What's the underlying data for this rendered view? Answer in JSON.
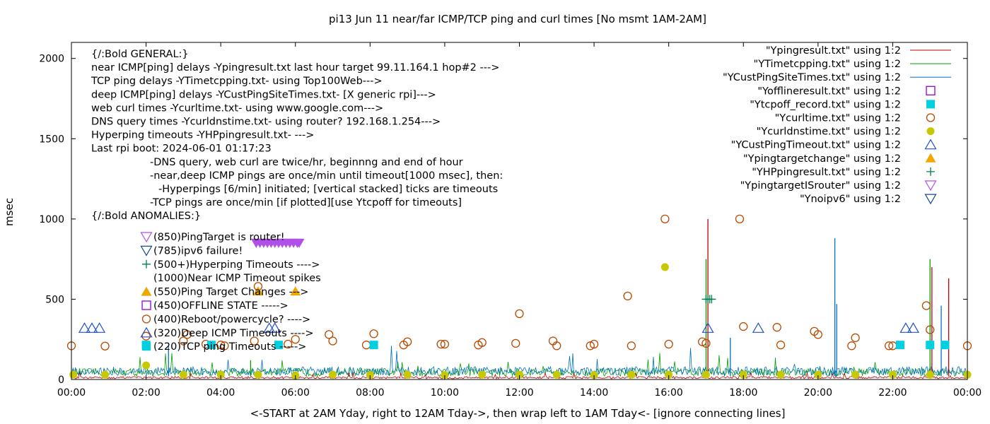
{
  "chart_data": {
    "type": "line",
    "title": "pi13 Jun 11  near/far ICMP/TCP ping and curl times [No msmt 1AM-2AM]",
    "xlabel": "<-START at 2AM Yday, right to 12AM Tday->, then wrap left to 1AM Tday<- [ignore connecting lines]",
    "ylabel": "msec",
    "xlim": [
      0,
      24
    ],
    "ylim": [
      0,
      2100
    ],
    "grid": false,
    "legend_position": "top-right",
    "x_ticks": [
      {
        "v": 0,
        "label": "00:00"
      },
      {
        "v": 2,
        "label": "02:00"
      },
      {
        "v": 4,
        "label": "04:00"
      },
      {
        "v": 6,
        "label": "06:00"
      },
      {
        "v": 8,
        "label": "08:00"
      },
      {
        "v": 10,
        "label": "10:00"
      },
      {
        "v": 12,
        "label": "12:00"
      },
      {
        "v": 14,
        "label": "14:00"
      },
      {
        "v": 16,
        "label": "16:00"
      },
      {
        "v": 18,
        "label": "18:00"
      },
      {
        "v": 20,
        "label": "20:00"
      },
      {
        "v": 22,
        "label": "22:00"
      },
      {
        "v": 24,
        "label": "00:00"
      }
    ],
    "y_ticks": [
      {
        "v": 0,
        "label": "0"
      },
      {
        "v": 500,
        "label": "500"
      },
      {
        "v": 1000,
        "label": "1000"
      },
      {
        "v": 1500,
        "label": "1500"
      },
      {
        "v": 2000,
        "label": "2000"
      }
    ],
    "legend": [
      {
        "label": "\"Ypingresult.txt\" using 1:2",
        "marker": "line",
        "color": "#c00000"
      },
      {
        "label": "\"YTimetcpping.txt\" using 1:2",
        "marker": "line",
        "color": "#009e00"
      },
      {
        "label": "\"YCustPingSiteTimes.txt\" using 1:2",
        "marker": "line",
        "color": "#0070c0"
      },
      {
        "label": "\"Yofflineresult.txt\" using 1:2",
        "marker": "square-open",
        "color": "#9400d3"
      },
      {
        "label": "\"Ytcpoff_record.txt\" using 1:2",
        "marker": "square-filled",
        "color": "#00d0e0"
      },
      {
        "label": "\"Ycurltime.txt\" using 1:2",
        "marker": "circle-open",
        "color": "#b84a00"
      },
      {
        "label": "\"Ycurldnstime.txt\" using 1:2",
        "marker": "circle-filled",
        "color": "#c8c800"
      },
      {
        "label": "\"YCustPingTimeout.txt\" using 1:2",
        "marker": "triangle-up-open",
        "color": "#2050d0"
      },
      {
        "label": "\"Ypingtargetchange\" using 1:2",
        "marker": "triangle-up-filled",
        "color": "#f0a800"
      },
      {
        "label": "\"YHPpingresult.txt\" using 1:2",
        "marker": "plus",
        "color": "#00804a"
      },
      {
        "label": "\"YpingtargetISrouter\" using 1:2",
        "marker": "triangle-down-open",
        "color": "#b050e8"
      },
      {
        "label": "\"Ynoipv6\" using 1:2",
        "marker": "triangle-down-open",
        "color": "#104a90"
      }
    ],
    "notes": [
      "{/:Bold GENERAL:}",
      "near ICMP[ping] delays -Ypingresult.txt last hour target 99.11.164.1 hop#2 --->",
      "TCP ping delays -YTimetcpping.txt- using Top100Web--->",
      "deep ICMP[ping] delays -YCustPingSiteTimes.txt- [X generic rpi]--->",
      "web curl times -Ycurltime.txt- using www.google.com--->",
      "DNS query times -Ycurldnstime.txt- using router? 192.168.1.254--->",
      "Hyperping timeouts -YHPpingresult.txt- --->",
      "Last rpi boot: 2024-06-01 01:17:23",
      "-DNS query, web curl are twice/hr, beginnng and end of hour",
      "-near,deep ICMP pings are once/min until timeout[1000 msec], then:",
      "-Hyperpings [6/min] initiated; [vertical stacked] ticks are timeouts",
      "-TCP pings are once/min [if plotted][use Ytcpoff for timeouts]",
      "{/:Bold ANOMALIES:}"
    ],
    "anomalies": [
      {
        "label": "(850)PingTarget is router!",
        "marker": "triangle-down-open",
        "color": "#b050e8"
      },
      {
        "label": "(785)ipv6 failure!",
        "marker": "triangle-down-open",
        "color": "#104a90"
      },
      {
        "label": "(500+)Hyperping Timeouts ---->",
        "marker": "plus",
        "color": "#00804a"
      },
      {
        "label": "(1000)Near ICMP Timeout spikes",
        "marker": "none",
        "color": "#000000"
      },
      {
        "label": "(550)Ping Target Changes --->",
        "marker": "triangle-up-filled",
        "color": "#f0a800"
      },
      {
        "label": "(450)OFFLINE STATE ----->",
        "marker": "square-open",
        "color": "#9400d3"
      },
      {
        "label": "(400)Reboot/powercycle? ---->",
        "marker": "circle-open",
        "color": "#b84a00"
      },
      {
        "label": "(320)Deep ICMP Timeouts ---->",
        "marker": "triangle-up-open",
        "color": "#2050d0"
      },
      {
        "label": "(220)TCP ping Timeouts ----->",
        "marker": "square-filled",
        "color": "#00d0e0"
      }
    ],
    "series": {
      "ycurltime": {
        "color": "#b84a00",
        "points": [
          [
            0.0,
            210
          ],
          [
            0.9,
            208
          ],
          [
            2.0,
            270
          ],
          [
            3.0,
            240
          ],
          [
            3.1,
            280
          ],
          [
            3.6,
            220
          ],
          [
            4.0,
            215
          ],
          [
            4.1,
            210
          ],
          [
            4.9,
            240
          ],
          [
            5.0,
            580
          ],
          [
            5.8,
            220
          ],
          [
            6.0,
            250
          ],
          [
            6.9,
            280
          ],
          [
            7.0,
            240
          ],
          [
            7.9,
            215
          ],
          [
            8.1,
            285
          ],
          [
            8.9,
            215
          ],
          [
            9.0,
            235
          ],
          [
            9.9,
            220
          ],
          [
            10.0,
            220
          ],
          [
            10.9,
            215
          ],
          [
            11.0,
            230
          ],
          [
            11.9,
            225
          ],
          [
            12.0,
            410
          ],
          [
            12.9,
            240
          ],
          [
            13.0,
            210
          ],
          [
            13.9,
            210
          ],
          [
            14.0,
            220
          ],
          [
            14.9,
            520
          ],
          [
            15.0,
            210
          ],
          [
            15.9,
            1000
          ],
          [
            16.0,
            220
          ],
          [
            16.9,
            235
          ],
          [
            17.0,
            225
          ],
          [
            17.9,
            1000
          ],
          [
            18.0,
            330
          ],
          [
            18.9,
            325
          ],
          [
            19.0,
            215
          ],
          [
            19.9,
            300
          ],
          [
            20.0,
            280
          ],
          [
            20.9,
            210
          ],
          [
            21.0,
            260
          ],
          [
            21.9,
            210
          ],
          [
            22.0,
            210
          ],
          [
            22.9,
            460
          ],
          [
            23.0,
            310
          ],
          [
            24.0,
            210
          ]
        ]
      },
      "ycurldnstime": {
        "color": "#c8c800",
        "points": [
          [
            0.05,
            30
          ],
          [
            0.9,
            30
          ],
          [
            2.0,
            88
          ],
          [
            3.0,
            30
          ],
          [
            4.0,
            30
          ],
          [
            5.0,
            30
          ],
          [
            6.0,
            25
          ],
          [
            7.0,
            30
          ],
          [
            8.0,
            28
          ],
          [
            9.0,
            30
          ],
          [
            10.0,
            28
          ],
          [
            11.0,
            30
          ],
          [
            12.0,
            30
          ],
          [
            13.0,
            30
          ],
          [
            14.0,
            28
          ],
          [
            15.0,
            30
          ],
          [
            15.9,
            700
          ],
          [
            16.0,
            30
          ],
          [
            17.0,
            30
          ],
          [
            18.0,
            30
          ],
          [
            19.0,
            30
          ],
          [
            20.0,
            30
          ],
          [
            21.0,
            30
          ],
          [
            22.0,
            30
          ],
          [
            23.0,
            30
          ],
          [
            24.0,
            30
          ]
        ]
      },
      "ytcpoff": {
        "color": "#00d0e0",
        "points": [
          [
            2.0,
            215
          ],
          [
            3.75,
            215
          ],
          [
            5.55,
            215
          ],
          [
            8.1,
            215
          ],
          [
            22.2,
            215
          ],
          [
            23.0,
            215
          ],
          [
            23.4,
            215
          ]
        ]
      },
      "ycustpingtimeout": {
        "color": "#2050d0",
        "points": [
          [
            0.35,
            320
          ],
          [
            0.55,
            320
          ],
          [
            0.75,
            320
          ],
          [
            5.3,
            320
          ],
          [
            5.45,
            320
          ],
          [
            17.05,
            320
          ],
          [
            18.4,
            320
          ],
          [
            22.35,
            320
          ],
          [
            22.55,
            320
          ]
        ]
      },
      "ypingtargetchange": {
        "color": "#f0a800",
        "points": [
          [
            5.0,
            550
          ],
          [
            6.0,
            550
          ]
        ]
      },
      "ypingtargetisrouter": {
        "color": "#b050e8",
        "points": [
          [
            4.95,
            850
          ],
          [
            5.05,
            850
          ],
          [
            5.15,
            850
          ],
          [
            5.25,
            850
          ],
          [
            5.35,
            850
          ],
          [
            5.45,
            850
          ],
          [
            5.55,
            850
          ],
          [
            5.65,
            850
          ],
          [
            5.75,
            850
          ],
          [
            5.85,
            850
          ],
          [
            5.95,
            850
          ],
          [
            6.05,
            850
          ],
          [
            6.1,
            850
          ]
        ]
      },
      "yhppingresult": {
        "color": "#00804a",
        "points": [
          [
            17.0,
            500
          ],
          [
            17.05,
            500
          ],
          [
            17.1,
            500
          ],
          [
            17.15,
            500
          ]
        ]
      },
      "ytimetcpping_spikes": {
        "color": "#009e00",
        "points": [
          [
            4.8,
            120
          ],
          [
            17.0,
            750
          ],
          [
            23.0,
            750
          ]
        ]
      },
      "ypingresult_spikes": {
        "color": "#c00000",
        "points": [
          [
            17.05,
            1000
          ],
          [
            23.05,
            700
          ],
          [
            23.5,
            630
          ]
        ]
      },
      "ycustpingsitetimes_spikes": {
        "color": "#0070c0",
        "points": [
          [
            2.6,
            210
          ],
          [
            17.65,
            260
          ],
          [
            20.45,
            880
          ],
          [
            20.5,
            470
          ],
          [
            23.3,
            460
          ]
        ]
      }
    }
  }
}
